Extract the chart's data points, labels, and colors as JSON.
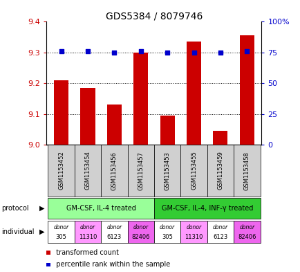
{
  "title": "GDS5384 / 8079746",
  "samples": [
    "GSM1153452",
    "GSM1153454",
    "GSM1153456",
    "GSM1153457",
    "GSM1153453",
    "GSM1153455",
    "GSM1153459",
    "GSM1153458"
  ],
  "bar_values": [
    9.21,
    9.185,
    9.13,
    9.3,
    9.095,
    9.335,
    9.045,
    9.355
  ],
  "percentile_values": [
    76,
    76,
    75,
    76,
    75,
    75,
    75,
    76
  ],
  "ylim_left": [
    9.0,
    9.4
  ],
  "ylim_right": [
    0,
    100
  ],
  "yticks_left": [
    9.0,
    9.1,
    9.2,
    9.3,
    9.4
  ],
  "yticks_right": [
    0,
    25,
    50,
    75,
    100
  ],
  "grid_values": [
    9.1,
    9.2,
    9.3
  ],
  "bar_color": "#cc0000",
  "dot_color": "#0000cc",
  "protocol_groups": [
    {
      "label": "GM-CSF, IL-4 treated",
      "start": 0,
      "end": 3,
      "color": "#99ff99"
    },
    {
      "label": "GM-CSF, IL-4, INF-γ treated",
      "start": 4,
      "end": 7,
      "color": "#33cc33"
    }
  ],
  "individuals": [
    {
      "label": "donor\n305",
      "color": "#ffffff"
    },
    {
      "label": "donor\n11310",
      "color": "#ff99ff"
    },
    {
      "label": "donor\n6123",
      "color": "#ffffff"
    },
    {
      "label": "donor\n82406",
      "color": "#ee66ee"
    },
    {
      "label": "donor\n305",
      "color": "#ffffff"
    },
    {
      "label": "donor\n11310",
      "color": "#ff99ff"
    },
    {
      "label": "donor\n6123",
      "color": "#ffffff"
    },
    {
      "label": "donor\n82406",
      "color": "#ee66ee"
    }
  ],
  "legend_bar_label": "transformed count",
  "legend_dot_label": "percentile rank within the sample",
  "left_axis_color": "#cc0000",
  "right_axis_color": "#0000cc",
  "sample_box_color": "#d0d0d0",
  "background_color": "#ffffff"
}
